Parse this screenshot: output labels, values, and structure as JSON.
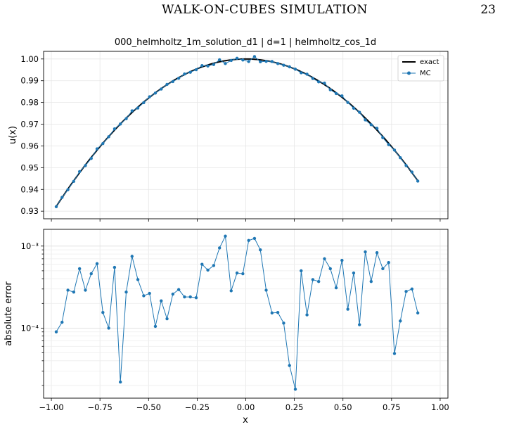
{
  "page": {
    "running_title": "WALK-ON-CUBES SIMULATION",
    "page_number": "23"
  },
  "chart_data": [
    {
      "type": "line",
      "title": "000_helmholtz_1m_solution_d1 | d=1 | helmholtz_cos_1d",
      "xlabel": "",
      "ylabel": "u(x)",
      "xlim": [
        -1.04,
        1.04
      ],
      "ylim": [
        0.9265,
        1.0035
      ],
      "xticks": [
        -1.0,
        -0.75,
        -0.5,
        -0.25,
        0.0,
        0.25,
        0.5,
        0.75,
        1.0
      ],
      "yticks": [
        0.93,
        0.94,
        0.95,
        0.96,
        0.97,
        0.98,
        0.99,
        1.0
      ],
      "ytick_labels": [
        "0.93",
        "0.94",
        "0.95",
        "0.96",
        "0.97",
        "0.98",
        "0.99",
        "1.00"
      ],
      "grid": true,
      "legend": "top-right",
      "series": [
        {
          "name": "exact",
          "color": "#000000",
          "style": "line",
          "function": "cos(0.38x)"
        },
        {
          "name": "MC",
          "color": "#1f77b4",
          "style": "line-marker",
          "x_from": -0.975,
          "x_step": 0.03,
          "values_from": "series0_plus_error"
        }
      ]
    },
    {
      "type": "line",
      "title": "",
      "xlabel": "x",
      "ylabel": "absolute error",
      "xlim": [
        -1.04,
        1.04
      ],
      "ylim": [
        1.4e-05,
        0.0016
      ],
      "yscale": "log",
      "xticks": [
        -1.0,
        -0.75,
        -0.5,
        -0.25,
        0.0,
        0.25,
        0.5,
        0.75,
        1.0
      ],
      "xtick_labels": [
        "−1.00",
        "−0.75",
        "−0.50",
        "−0.25",
        "0.00",
        "0.25",
        "0.50",
        "0.75",
        "1.00"
      ],
      "ytick_labels": [
        "10⁻³",
        "10⁻⁴"
      ],
      "grid": true,
      "series": [
        {
          "name": "",
          "color": "#1f77b4",
          "x_from": -0.975,
          "x_step": 0.03,
          "values": [
            9e-05,
            0.000118,
            0.00029,
            0.000275,
            0.00053,
            0.00029,
            0.00046,
            0.00061,
            0.000155,
            0.0001,
            0.00055,
            2.2e-05,
            0.000275,
            0.00075,
            0.00039,
            0.000248,
            0.000265,
            0.000105,
            0.000215,
            0.00013,
            0.00026,
            0.000295,
            0.00024,
            0.00024,
            0.000235,
            0.0006,
            0.00051,
            0.00058,
            0.00095,
            0.00132,
            0.000285,
            0.00047,
            0.00046,
            0.00117,
            0.00124,
            0.0009,
            0.00029,
            0.000153,
            0.000155,
            0.000115,
            3.5e-05,
            1.8e-05,
            0.0005,
            0.000145,
            0.00039,
            0.00037,
            0.0007,
            0.00053,
            0.00031,
            0.00067,
            0.00017,
            0.00047,
            0.00011,
            0.00085,
            0.00037,
            0.00083,
            0.00053,
            0.00063,
            4.9e-05,
            0.000122,
            0.00028,
            0.0003,
            0.000153
          ]
        }
      ]
    }
  ]
}
